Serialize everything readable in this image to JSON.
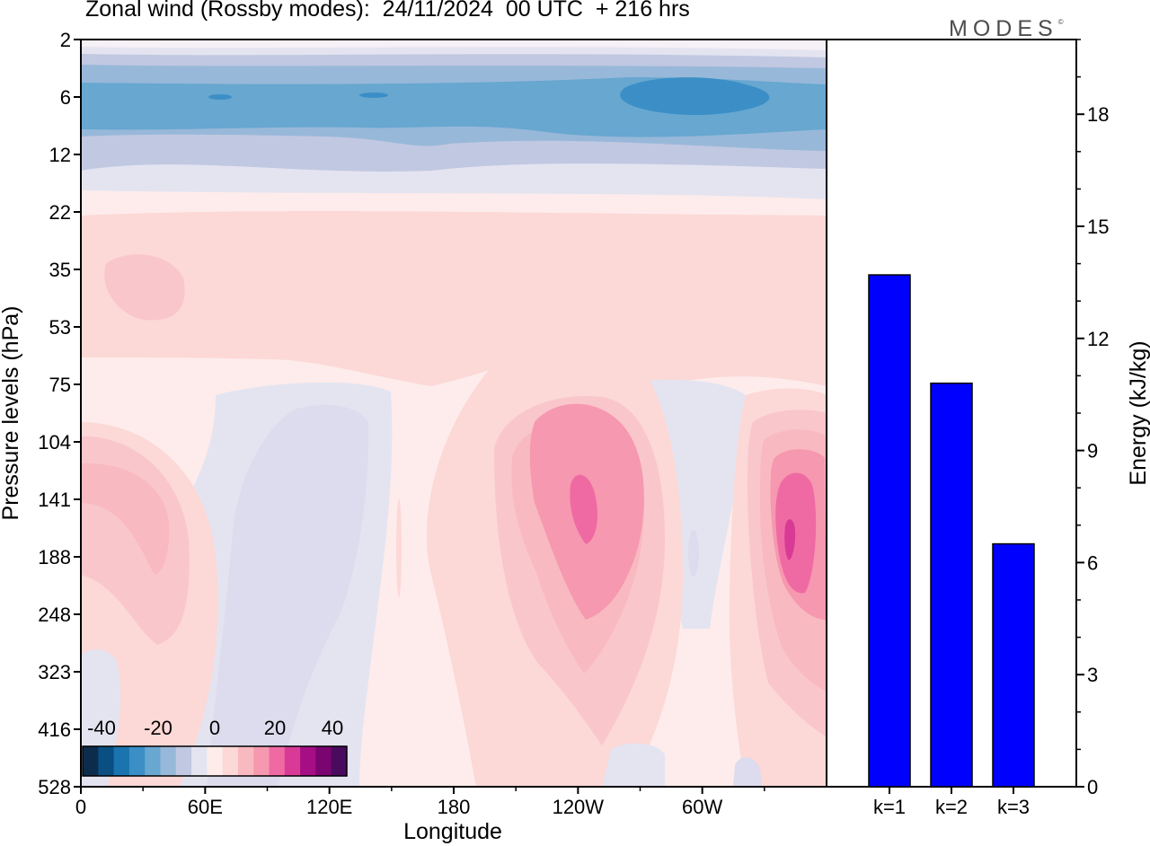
{
  "title": "Zonal wind (Rossby modes):  24/11/2024  00 UTC  + 216 hrs",
  "logo": "MODES",
  "logo_mark": "©",
  "chart_data": [
    {
      "type": "heatmap",
      "xlabel": "Longitude",
      "ylabel": "Pressure levels (hPa)",
      "x_tick_labels": [
        "0",
        "60E",
        "120E",
        "180",
        "120W",
        "60W"
      ],
      "y_tick_labels": [
        "2",
        "6",
        "12",
        "22",
        "35",
        "53",
        "75",
        "104",
        "141",
        "188",
        "248",
        "323",
        "416",
        "528"
      ],
      "colorbar": {
        "tick_labels": [
          "-40",
          "-20",
          "0",
          "20",
          "40"
        ],
        "range": [
          -40,
          40
        ],
        "colors": [
          "#0c2c4c",
          "#0a4f82",
          "#1a74b0",
          "#3b8fc6",
          "#67a7d0",
          "#98b8d9",
          "#c1c8e1",
          "#e4e4f1",
          "#fdecea",
          "#fcd8d6",
          "#f9b9c0",
          "#f598b0",
          "#ef6aa3",
          "#d93a96",
          "#a50e84",
          "#7a0470",
          "#4a0b5e"
        ]
      },
      "features": [
        {
          "name": "easterly jet core",
          "level_hPa": 6,
          "max_wind": -20,
          "unit": "m/s"
        },
        {
          "name": "westerly maximum near 120W",
          "level_hPa": 141,
          "max_wind": 20,
          "unit": "m/s"
        },
        {
          "name": "westerly maximum near 20W",
          "level_hPa": 160,
          "max_wind": 25,
          "unit": "m/s"
        }
      ]
    },
    {
      "type": "bar",
      "categories": [
        "k=1",
        "k=2",
        "k=3"
      ],
      "values": [
        13.7,
        10.8,
        6.5
      ],
      "ylabel": "Energy (kJ/kg)",
      "ylim": [
        0,
        20
      ],
      "y_tick_labels": [
        "0",
        "3",
        "6",
        "9",
        "12",
        "15",
        "18"
      ],
      "bar_color": "#0000ff"
    }
  ]
}
